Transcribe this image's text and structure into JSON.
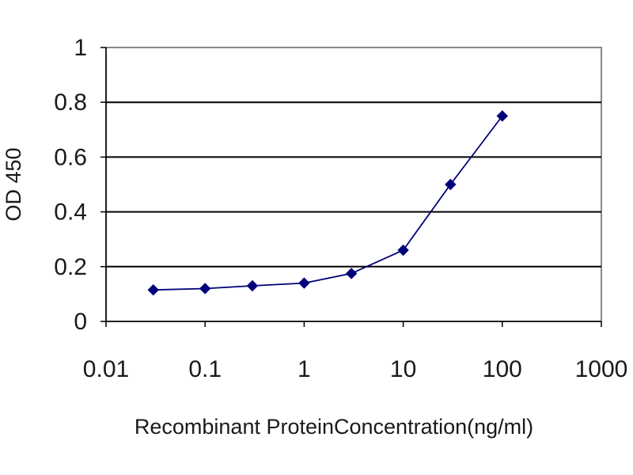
{
  "chart_data": {
    "type": "line",
    "xlabel": "Recombinant ProteinConcentration(ng/ml)",
    "ylabel": "OD 450",
    "x_scale": "log",
    "xlim": [
      0.01,
      1000
    ],
    "ylim": [
      0,
      1
    ],
    "x_ticks": [
      "0.01",
      "0.1",
      "1",
      "10",
      "100",
      "1000"
    ],
    "y_ticks": [
      "0",
      "0.2",
      "0.4",
      "0.6",
      "0.8",
      "1"
    ],
    "grid": "horizontal",
    "legend": "none",
    "series": [
      {
        "color": "#00007a",
        "x": [
          0.03,
          0.1,
          0.3,
          1,
          3,
          10,
          30,
          100
        ],
        "y": [
          0.115,
          0.12,
          0.13,
          0.14,
          0.175,
          0.26,
          0.5,
          0.75
        ]
      }
    ]
  }
}
